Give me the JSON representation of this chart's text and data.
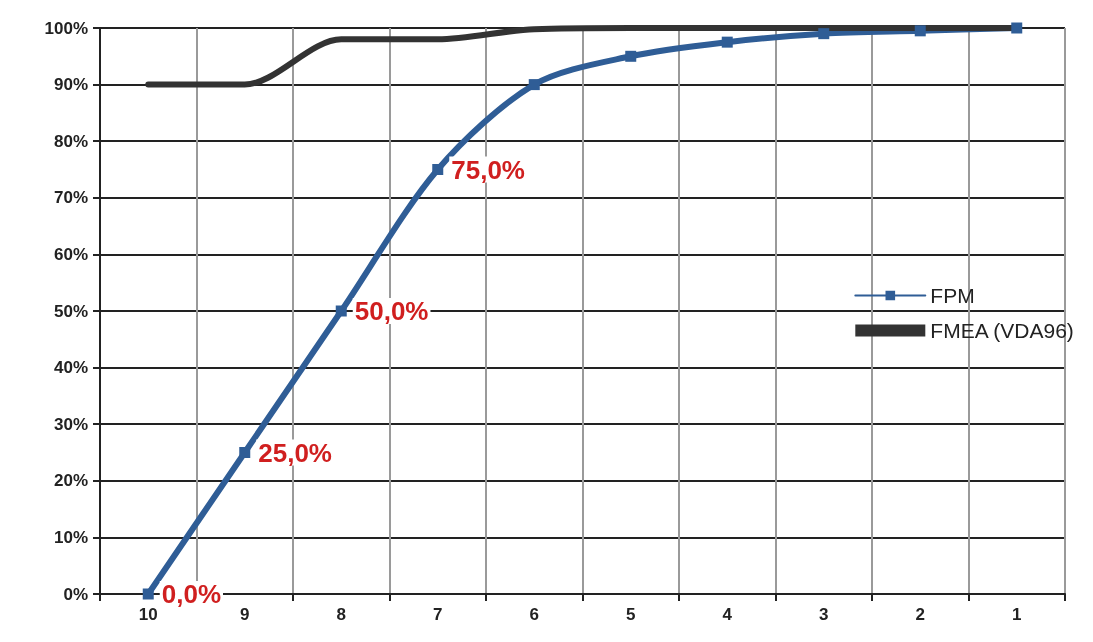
{
  "chart_data": {
    "type": "line",
    "categories": [
      "10",
      "9",
      "8",
      "7",
      "6",
      "5",
      "4",
      "3",
      "2",
      "1"
    ],
    "series": [
      {
        "name": "FPM",
        "color": "#2f5d96",
        "marker": "square",
        "values": [
          0,
          25,
          50,
          75,
          90,
          95,
          97.5,
          99,
          99.5,
          100
        ],
        "value_labels": [
          "0,0%",
          "25,0%",
          "50,0%",
          "75,0%",
          null,
          null,
          null,
          null,
          null,
          null
        ]
      },
      {
        "name": "FMEA (VDA96)",
        "color": "#333333",
        "marker": "none",
        "values": [
          90,
          90,
          98,
          98,
          99.8,
          100,
          100,
          100,
          100,
          100
        ]
      }
    ],
    "ylim": [
      0,
      100
    ],
    "yticks": [
      {
        "value": 0,
        "label": "0%"
      },
      {
        "value": 10,
        "label": "10%"
      },
      {
        "value": 20,
        "label": "20%"
      },
      {
        "value": 30,
        "label": "30%"
      },
      {
        "value": 40,
        "label": "40%"
      },
      {
        "value": 50,
        "label": "50%"
      },
      {
        "value": 60,
        "label": "60%"
      },
      {
        "value": 70,
        "label": "70%"
      },
      {
        "value": 80,
        "label": "80%"
      },
      {
        "value": 90,
        "label": "90%"
      },
      {
        "value": 100,
        "label": "100%"
      }
    ],
    "grid": true,
    "legend": "right",
    "line_style": "solid"
  }
}
